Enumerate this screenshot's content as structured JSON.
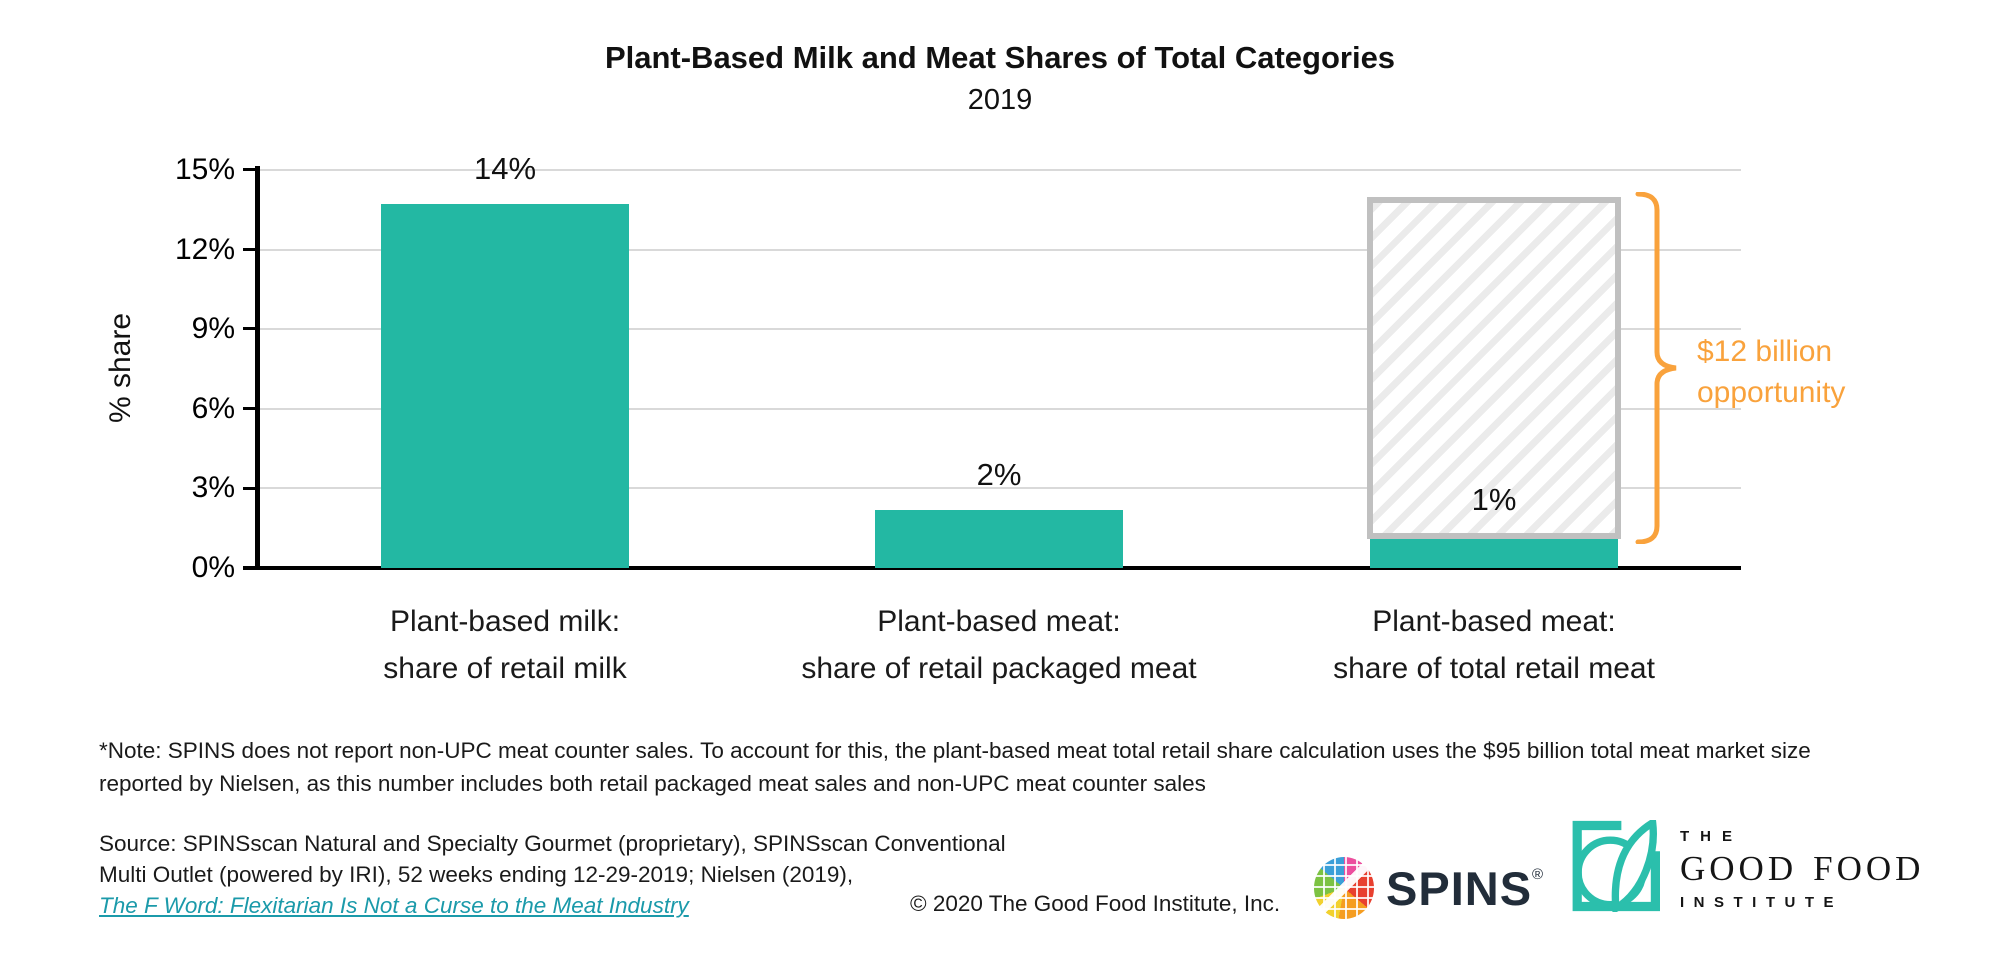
{
  "chart_data": {
    "type": "bar",
    "title": "Plant-Based Milk and Meat Shares of Total Categories",
    "subtitle": "2019",
    "ylabel": "% share",
    "ylim": [
      0,
      15
    ],
    "yticks": [
      "0%",
      "3%",
      "6%",
      "9%",
      "12%",
      "15%"
    ],
    "grid": true,
    "legend": "none",
    "categories": [
      {
        "label_line1": "Plant-based milk:",
        "label_line2": "share of retail milk",
        "value": 13.7,
        "value_label": "14%"
      },
      {
        "label_line1": "Plant-based meat:",
        "label_line2": "share of retail packaged meat",
        "value": 2.2,
        "value_label": "2%"
      },
      {
        "label_line1": "Plant-based meat:",
        "label_line2": "share of total retail meat",
        "value": 1.1,
        "value_label": "1%",
        "value_label_position": "inside",
        "potential_value": 14,
        "potential_style": "hatched"
      }
    ],
    "annotation": {
      "line1": "$12 billion",
      "line2": "opportunity",
      "color": "#F9A23C"
    },
    "colors": {
      "bar": "#23B8A3",
      "gridline": "#D9D9D9",
      "axis": "#000000",
      "hatch_border": "#C0C0C0",
      "hatch_stripe": "#EBEBEB"
    }
  },
  "note": {
    "line1": "*Note: SPINS does not report non-UPC meat counter sales. To account for this, the plant-based meat total retail share calculation uses the $95 billion total meat market size",
    "line2": "reported by Nielsen, as this number includes both retail packaged meat sales and non-UPC meat counter sales"
  },
  "source": {
    "line1": "Source: SPINSscan Natural and Specialty Gourmet (proprietary), SPINSscan Conventional",
    "line2": "Multi Outlet (powered by IRI), 52 weeks ending 12-29-2019; Nielsen (2019),",
    "link_text": "The F Word: Flexitarian Is Not a Curse to the Meat Industry",
    "link_color": "#1B9AAA"
  },
  "copyright": "© 2020 The Good Food Institute, Inc.",
  "logos": {
    "spins": {
      "wordmark": "SPINS",
      "registered": "®",
      "color": "#222D3A"
    },
    "gfi": {
      "line1": "THE",
      "word1": "GOOD",
      "word2": "FOOD",
      "line3": "INSTITUTE",
      "teal": "#2BBFAC"
    }
  }
}
